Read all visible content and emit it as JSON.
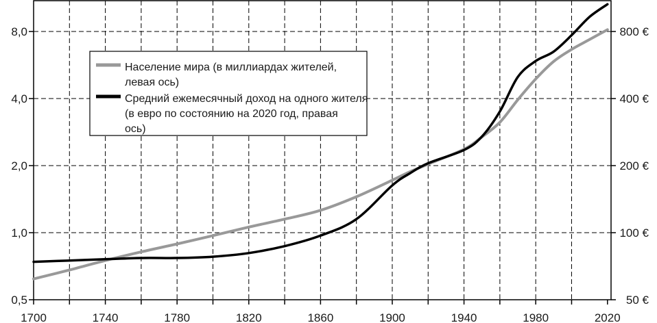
{
  "chart_data": {
    "type": "line",
    "scale": "log",
    "grid": true,
    "legend_position": "top-left inside plot",
    "x": [
      1700,
      1720,
      1740,
      1760,
      1780,
      1800,
      1820,
      1840,
      1860,
      1880,
      1900,
      1910,
      1920,
      1940,
      1950,
      1960,
      1970,
      1980,
      1990,
      2000,
      2010,
      2020
    ],
    "x_ticks": [
      "1700",
      "1740",
      "1780",
      "1820",
      "1860",
      "1900",
      "1940",
      "1980",
      "2020"
    ],
    "xlim": [
      1700,
      2022
    ],
    "y_left_ticks": [
      "0,5",
      "1,0",
      "2,0",
      "4,0",
      "8,0"
    ],
    "y_left_lim": [
      0.5,
      11
    ],
    "y_right_ticks": [
      "50 €",
      "100 €",
      "200 €",
      "400 €",
      "800 €"
    ],
    "y_right_lim": [
      50,
      1100
    ],
    "series": [
      {
        "name": "Население мира (в миллиардах жителей, левая ось)",
        "axis": "left",
        "color": "#999999",
        "values": [
          0.62,
          0.68,
          0.75,
          0.82,
          0.89,
          0.97,
          1.06,
          1.15,
          1.26,
          1.45,
          1.72,
          1.88,
          2.03,
          2.37,
          2.69,
          3.13,
          3.95,
          4.9,
          5.87,
          6.65,
          7.36,
          8.15
        ]
      },
      {
        "name": "Средний ежемесячный доход на одного жителя (в евро по состоянию на 2020 год, правая ось)",
        "axis": "right",
        "color": "#000000",
        "values": [
          74,
          75,
          76,
          77,
          77,
          78,
          81,
          87,
          97,
          115,
          163,
          185,
          205,
          235,
          270,
          350,
          500,
          590,
          650,
          770,
          930,
          1060
        ]
      }
    ]
  }
}
